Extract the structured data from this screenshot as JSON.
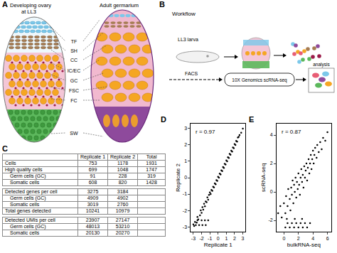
{
  "panels": {
    "A": {
      "letter": "A",
      "left_title": [
        "Developing ovary",
        "at LL3"
      ],
      "right_title": "Adult germarium",
      "cell_labels": [
        "TF",
        "SH",
        "CC",
        "IC/EC",
        "GC",
        "FSC",
        "FC",
        "SW"
      ]
    },
    "B": {
      "letter": "B",
      "title": "Workflow",
      "steps": [
        "LL3 larva",
        "FACS",
        "10X Genomics scRNA-seq",
        "analysis"
      ]
    },
    "C": {
      "letter": "C",
      "table": {
        "header": [
          "Replicate 1",
          "Replicate 2",
          "Total"
        ],
        "sections": [
          [
            {
              "label": "Cells",
              "values": [
                753,
                1178,
                1931
              ]
            },
            {
              "label": "High quality cells",
              "values": [
                699,
                1048,
                1747
              ],
              "sub": [
                {
                  "label": "Germ cells (GC)",
                  "values": [
                    91,
                    228,
                    319
                  ]
                },
                {
                  "label": "Somatic cells",
                  "values": [
                    608,
                    820,
                    1428
                  ]
                }
              ]
            }
          ],
          [
            {
              "label": "Detected genes per cell",
              "values": [
                3275,
                3184
              ],
              "sub": [
                {
                  "label": "Germ cells (GC)",
                  "values": [
                    4909,
                    4902
                  ]
                },
                {
                  "label": "Somatic cells",
                  "values": [
                    3019,
                    2760
                  ]
                }
              ]
            },
            {
              "label": "Total genes detected",
              "values": [
                10241,
                10979
              ]
            }
          ],
          [
            {
              "label": "Detected UMIs per cell",
              "values": [
                23907,
                27147
              ],
              "sub": [
                {
                  "label": "Germ cells (GC)",
                  "values": [
                    48013,
                    53210
                  ]
                },
                {
                  "label": "Somatic cells",
                  "values": [
                    20130,
                    20270
                  ]
                }
              ]
            }
          ]
        ]
      }
    }
  },
  "chart_data": [
    {
      "panel": "D",
      "type": "scatter",
      "x_label": "Replicate 1",
      "y_label": "Replicate 2",
      "annotation": "r = 0.97",
      "color": "#000000",
      "grid": false,
      "xlim": [
        -3.3,
        3.3
      ],
      "ylim": [
        -3.3,
        3.3
      ],
      "xticks": [
        -3,
        -2,
        -1,
        0,
        1,
        2,
        3
      ],
      "yticks": [
        -3,
        -2,
        -1,
        0,
        1,
        2,
        3
      ],
      "x": [
        -3,
        -2.9,
        -2.8,
        -2.6,
        -2.5,
        -2.4,
        -2.2,
        -2.1,
        -2,
        -1.9,
        -1.8,
        -1.7,
        -1.6,
        -1.5,
        -1.4,
        -1.3,
        -1.2,
        -1.1,
        -1,
        -0.9,
        -0.8,
        -0.7,
        -0.6,
        -0.5,
        -0.4,
        -0.3,
        -0.2,
        -0.1,
        0,
        0.1,
        0.2,
        0.3,
        0.4,
        0.5,
        0.6,
        0.7,
        0.8,
        0.9,
        1,
        1.1,
        1.2,
        1.3,
        1.4,
        1.5,
        1.6,
        1.7,
        1.8,
        1.9,
        2,
        2.1,
        2.2,
        2.3,
        2.4,
        2.5,
        2.6,
        2.8,
        3,
        -2.7,
        -2.3,
        -1.9,
        -1.5,
        -2.5,
        -2.0,
        -1.6,
        -1.2
      ],
      "values": [
        -2.85,
        -2.95,
        -2.7,
        -2.75,
        -2.4,
        -2.55,
        -2.3,
        -2.0,
        -2.15,
        -1.8,
        -1.95,
        -1.6,
        -1.75,
        -1.45,
        -1.5,
        -1.2,
        -1.35,
        -1.05,
        -0.9,
        -1.0,
        -0.75,
        -0.8,
        -0.55,
        -0.6,
        -0.35,
        -0.4,
        -0.15,
        -0.2,
        0.05,
        0.0,
        0.25,
        0.2,
        0.45,
        0.4,
        0.65,
        0.6,
        0.85,
        0.8,
        1.05,
        1.0,
        1.25,
        1.2,
        1.45,
        1.4,
        1.65,
        1.6,
        1.85,
        1.8,
        2.05,
        2.0,
        2.25,
        2.2,
        2.45,
        2.5,
        2.6,
        2.75,
        3.0,
        -2.9,
        -2.9,
        -2.9,
        -2.9,
        -2.6,
        -2.6,
        -2.6,
        -2.6
      ]
    },
    {
      "panel": "E",
      "type": "scatter",
      "x_label": "bulkRNA-seq",
      "y_label": "scRNA-seq",
      "annotation": "r = 0.87",
      "color": "#000000",
      "grid": false,
      "xlim": [
        -1,
        6.5
      ],
      "ylim": [
        -2.8,
        4.8
      ],
      "xticks": [
        0,
        2,
        4,
        6
      ],
      "yticks": [
        -2,
        0,
        2,
        4
      ],
      "x": [
        -0.8,
        -0.5,
        -0.3,
        0,
        0.2,
        0.3,
        0.5,
        0.6,
        0.8,
        0.9,
        1,
        1.1,
        1.2,
        1.3,
        1.4,
        1.5,
        1.6,
        1.7,
        1.8,
        1.9,
        2,
        2.1,
        2.2,
        2.3,
        2.4,
        2.5,
        2.6,
        2.7,
        2.8,
        2.9,
        3,
        3.1,
        3.2,
        3.3,
        3.4,
        3.5,
        3.6,
        3.7,
        3.8,
        3.9,
        4,
        4.1,
        4.2,
        4.3,
        4.5,
        4.6,
        4.8,
        5,
        5.2,
        5.4,
        5.7,
        6,
        0.2,
        0.8,
        1.4,
        2.0,
        2.6,
        3.2,
        0.5,
        1.1,
        1.7,
        2.3,
        2.9,
        3.6,
        0.4,
        1.5,
        2.5
      ],
      "values": [
        -1.5,
        -1.0,
        -1.8,
        -0.8,
        -1.5,
        -0.3,
        -1.0,
        0.2,
        -0.5,
        -1.3,
        0.3,
        -0.2,
        0.8,
        -0.8,
        0.5,
        0.0,
        1.0,
        -0.4,
        0.7,
        0.2,
        1.3,
        0.5,
        -0.2,
        1.0,
        1.6,
        0.7,
        1.2,
        0.3,
        1.8,
        1.0,
        1.5,
        2.0,
        0.8,
        1.7,
        2.3,
        1.3,
        2.0,
        2.6,
        1.6,
        2.3,
        2.9,
        2.0,
        2.6,
        3.1,
        2.4,
        3.3,
        2.8,
        3.5,
        3.0,
        3.8,
        3.6,
        4.2,
        -2.5,
        -2.5,
        -2.5,
        -2.5,
        -2.5,
        -2.5,
        -2.2,
        -2.2,
        -2.2,
        -2.2,
        -2.2,
        -2.2,
        -1.9,
        -1.9,
        -1.9
      ]
    }
  ]
}
